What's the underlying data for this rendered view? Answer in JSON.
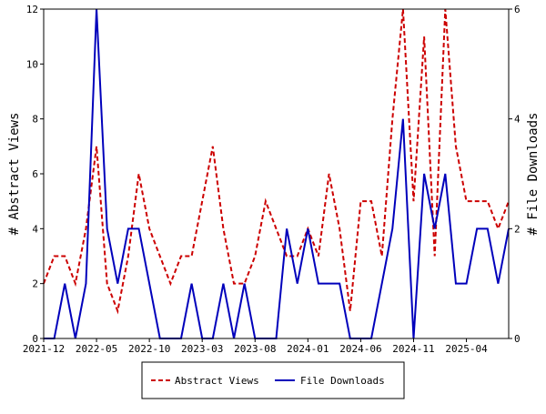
{
  "chart_data": {
    "type": "line",
    "x": [
      "2021-12",
      "2022-01",
      "2022-02",
      "2022-03",
      "2022-04",
      "2022-05",
      "2022-06",
      "2022-07",
      "2022-08",
      "2022-09",
      "2022-10",
      "2022-11",
      "2022-12",
      "2023-01",
      "2023-02",
      "2023-03",
      "2023-04",
      "2023-05",
      "2023-06",
      "2023-07",
      "2023-08",
      "2023-09",
      "2023-10",
      "2023-11",
      "2023-12",
      "2024-01",
      "2024-02",
      "2024-03",
      "2024-04",
      "2024-05",
      "2024-06",
      "2024-07",
      "2024-08",
      "2024-09",
      "2024-10",
      "2024-11",
      "2024-12",
      "2025-01",
      "2025-02",
      "2025-03",
      "2025-04",
      "2025-05",
      "2025-06",
      "2025-07",
      "2025-08"
    ],
    "x_tick_labels": [
      "2021-12",
      "2022-05",
      "2022-10",
      "2023-03",
      "2023-08",
      "2024-01",
      "2024-06",
      "2024-11",
      "2025-04"
    ],
    "series": [
      {
        "name": "Abstract Views",
        "axis": "left",
        "color": "#cc0000",
        "dashed": true,
        "values": [
          2,
          3,
          3,
          2,
          4,
          7,
          2,
          1,
          3,
          6,
          4,
          3,
          2,
          3,
          3,
          5,
          7,
          4,
          2,
          2,
          3,
          5,
          4,
          3,
          3,
          4,
          3,
          6,
          4,
          1,
          5,
          5,
          3,
          8,
          12,
          5,
          11,
          3,
          12,
          7,
          5,
          5,
          5,
          4,
          5
        ]
      },
      {
        "name": "File Downloads",
        "axis": "right",
        "color": "#0000bb",
        "dashed": false,
        "values": [
          0,
          0,
          1,
          0,
          1,
          6,
          2,
          1,
          2,
          2,
          1,
          0,
          0,
          0,
          1,
          0,
          0,
          1,
          0,
          1,
          0,
          0,
          0,
          2,
          1,
          2,
          1,
          1,
          1,
          0,
          0,
          0,
          1,
          2,
          4,
          0,
          3,
          2,
          3,
          1,
          1,
          2,
          2,
          1,
          2
        ]
      }
    ],
    "ylabel": "# Abstract Views",
    "y2label": "# File Downloads",
    "ylim": [
      0,
      12
    ],
    "y2lim": [
      0,
      6
    ],
    "yticks": [
      "0",
      "2",
      "4",
      "6",
      "8",
      "10",
      "12"
    ],
    "y2ticks": [
      "0",
      "2",
      "4",
      "6"
    ],
    "legend_position": "bottom"
  }
}
